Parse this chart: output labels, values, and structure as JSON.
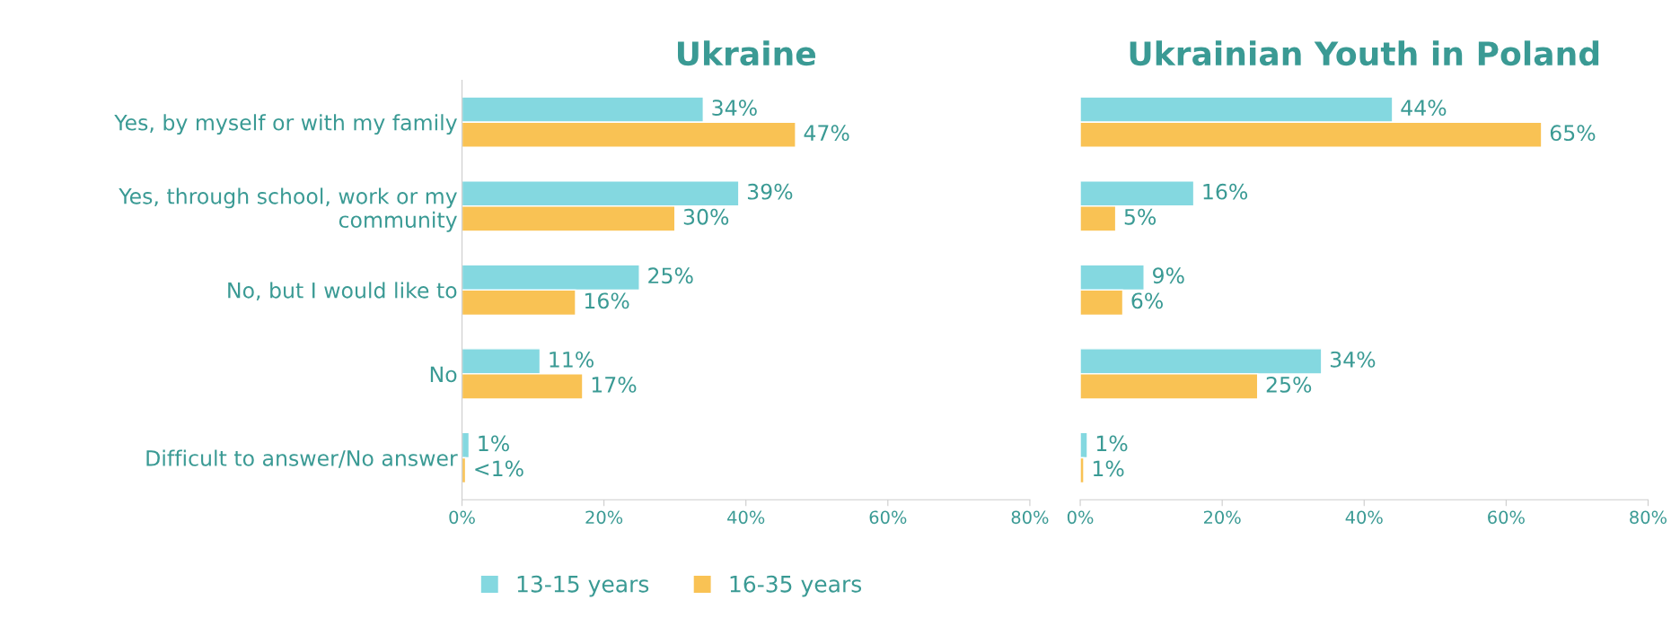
{
  "chart_data": [
    {
      "type": "bar",
      "orientation": "horizontal",
      "title": "Ukraine",
      "categories": [
        "Yes, by myself or with my family",
        "Yes, through school, work or my community",
        "No, but I would like to",
        "No",
        "Difficult to answer/No answer"
      ],
      "series": [
        {
          "name": "13-15 years",
          "color": "#84d8e0",
          "values": [
            34,
            39,
            25,
            11,
            1
          ],
          "value_labels": [
            "34%",
            "39%",
            "25%",
            "11%",
            "1%"
          ]
        },
        {
          "name": "16-35 years",
          "color": "#f9c254",
          "values": [
            47,
            30,
            16,
            17,
            0.5
          ],
          "value_labels": [
            "47%",
            "30%",
            "16%",
            "17%",
            "<1%"
          ]
        }
      ],
      "xlim": [
        0,
        80
      ],
      "xticks": [
        {
          "value": 0,
          "label": "0%"
        },
        {
          "value": 20,
          "label": "20%"
        },
        {
          "value": 40,
          "label": "40%"
        },
        {
          "value": 60,
          "label": "60%"
        },
        {
          "value": 80,
          "label": "80%"
        }
      ],
      "grid": false,
      "legend": "bottom"
    },
    {
      "type": "bar",
      "orientation": "horizontal",
      "title": "Ukrainian Youth in Poland",
      "categories": [
        null,
        null,
        null,
        null,
        null
      ],
      "series": [
        {
          "color": "#84d8e0",
          "values": [
            44,
            16,
            9,
            34,
            1
          ],
          "value_labels": [
            "44%",
            "16%",
            "9%",
            "34%",
            "1%"
          ]
        },
        {
          "color": "#f9c254",
          "values": [
            65,
            5,
            6,
            25,
            0.5
          ],
          "value_labels": [
            "65%",
            "5%",
            "6%",
            "25%",
            "1%"
          ]
        }
      ],
      "xlim": [
        0,
        80
      ],
      "xticks": [
        {
          "value": 0,
          "label": "0%"
        },
        {
          "value": 20,
          "label": "20%"
        },
        {
          "value": 40,
          "label": "40%"
        },
        {
          "value": 60,
          "label": "60%"
        },
        {
          "value": 80,
          "label": "80%"
        }
      ],
      "grid": false,
      "tick_labels": "x"
    }
  ]
}
